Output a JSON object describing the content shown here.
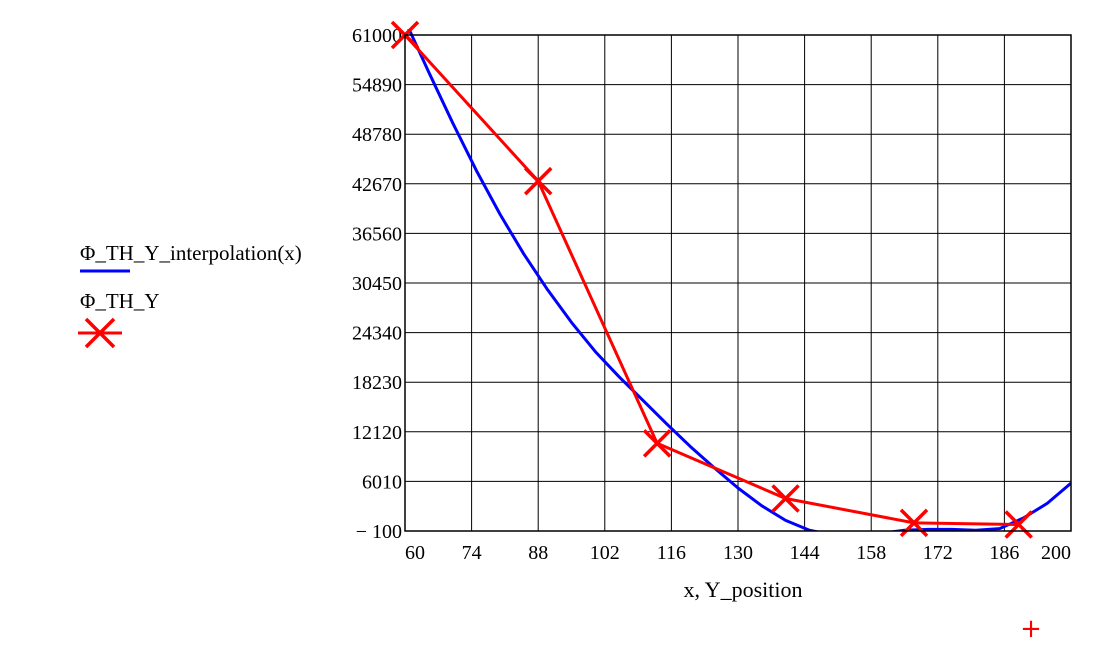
{
  "chart_data": {
    "type": "line",
    "xlabel": "x, Y_position",
    "ylabel": "",
    "xlim": [
      60,
      200
    ],
    "ylim": [
      -100,
      61000
    ],
    "x_ticks": [
      60,
      74,
      88,
      102,
      116,
      130,
      144,
      158,
      172,
      186,
      200
    ],
    "y_ticks": [
      -100,
      6010,
      12120,
      18230,
      24340,
      30450,
      36560,
      42670,
      48780,
      54890,
      61000
    ],
    "y_tick_labels": [
      "− 100",
      "6010",
      "12120",
      "18230",
      "24340",
      "30450",
      "36560",
      "42670",
      "48780",
      "54890",
      "61000"
    ],
    "grid": true,
    "legend_position": "left",
    "series": [
      {
        "name": "Φ_TH_Y_interpolation(x)",
        "color": "#0000ff",
        "marker": "none",
        "x": [
          60,
          65,
          70,
          75,
          80,
          85,
          90,
          95,
          100,
          105,
          110,
          115,
          120,
          125,
          130,
          135,
          140,
          145,
          150,
          155,
          160,
          165,
          170,
          175,
          180,
          185,
          190,
          195,
          200
        ],
        "y": [
          62800,
          56400,
          50200,
          44300,
          38900,
          34000,
          29600,
          25600,
          22000,
          18900,
          16000,
          13100,
          10300,
          7700,
          5200,
          3000,
          1200,
          0,
          -600,
          -700,
          -400,
          0,
          100,
          100,
          0,
          200,
          1500,
          3300,
          5800
        ]
      },
      {
        "name": "Φ_TH_Y",
        "color": "#ff0000",
        "marker": "x",
        "x": [
          60,
          88,
          113,
          140,
          167,
          189
        ],
        "y": [
          61000,
          43000,
          10700,
          3900,
          900,
          700
        ]
      }
    ]
  },
  "extra_marker": {
    "symbol": "+",
    "color": "#ff0000"
  }
}
